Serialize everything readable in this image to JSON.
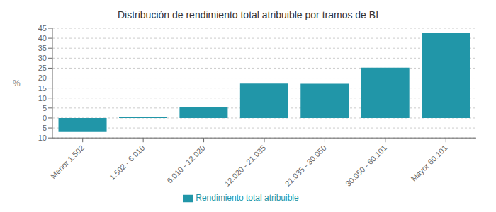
{
  "chart_data": {
    "type": "bar",
    "title": "Distribución de rendimiento total atribuible por tramos de BI",
    "categories": [
      "Menor 1.502",
      "1.502 - 6.010",
      "6.010 - 12.020",
      "12.020 - 21.035",
      "21.035 - 30.050",
      "30.050 - 60.101",
      "Mayor 60.101"
    ],
    "series": [
      {
        "name": "Rendimiento total atribuible",
        "color": "#2196a8",
        "values": [
          -7.0,
          0.3,
          5.3,
          17.3,
          17.2,
          25.2,
          42.5
        ]
      }
    ],
    "ylabel": "%",
    "ylim": [
      -10,
      45
    ],
    "yticks": [
      -10,
      -5,
      0,
      5,
      10,
      15,
      20,
      25,
      30,
      35,
      40,
      45
    ],
    "grid": true,
    "legend": "bottom"
  }
}
